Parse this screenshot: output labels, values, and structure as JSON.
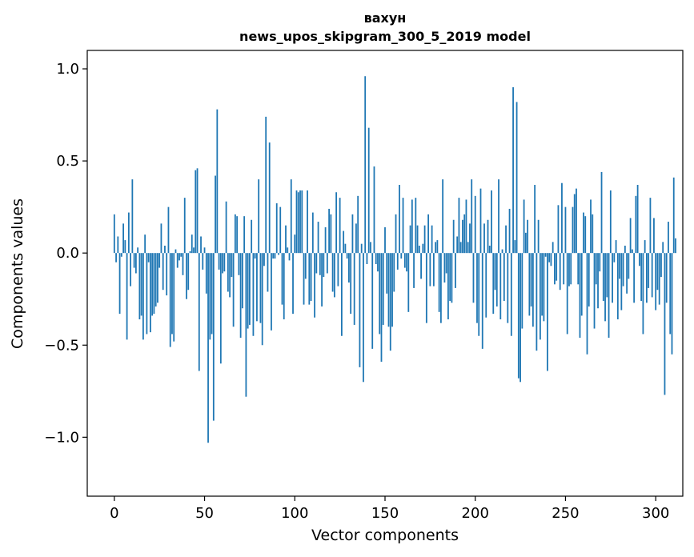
{
  "chart_data": {
    "type": "bar",
    "title": "вахун",
    "subtitle": "news_upos_skipgram_300_5_2019 model",
    "xlabel": "Vector components",
    "ylabel": "Components values",
    "xlim": [
      -15,
      315
    ],
    "ylim": [
      -1.32,
      1.1
    ],
    "color": "#1f77b4",
    "xticks": [
      0,
      50,
      100,
      150,
      200,
      250,
      300
    ],
    "yticks": [
      -1.0,
      -0.5,
      0.0,
      0.5,
      1.0
    ],
    "xtick_labels": [
      "0",
      "50",
      "100",
      "150",
      "200",
      "250",
      "300"
    ],
    "ytick_labels": [
      "−1.0",
      "−0.5",
      "0.0",
      "0.5",
      "1.0"
    ],
    "values": [
      0.21,
      -0.05,
      0.09,
      -0.33,
      -0.02,
      0.16,
      0.07,
      -0.47,
      0.22,
      -0.18,
      0.4,
      -0.08,
      -0.11,
      0.03,
      -0.36,
      -0.34,
      -0.47,
      0.1,
      -0.44,
      -0.05,
      -0.43,
      -0.34,
      -0.33,
      -0.29,
      -0.27,
      -0.08,
      0.16,
      -0.2,
      0.04,
      -0.23,
      0.25,
      -0.51,
      -0.44,
      -0.48,
      0.02,
      -0.08,
      -0.04,
      -0.02,
      -0.12,
      0.3,
      -0.25,
      -0.2,
      0.01,
      0.1,
      0.03,
      0.45,
      0.46,
      -0.64,
      0.09,
      -0.09,
      0.03,
      -0.22,
      -1.03,
      -0.47,
      -0.44,
      -0.91,
      0.42,
      0.78,
      -0.09,
      -0.6,
      -0.11,
      -0.1,
      0.28,
      -0.21,
      -0.24,
      -0.13,
      -0.4,
      0.21,
      0.2,
      -0.12,
      -0.46,
      -0.3,
      0.2,
      -0.78,
      -0.41,
      -0.39,
      0.18,
      -0.45,
      -0.03,
      -0.37,
      0.4,
      -0.38,
      -0.5,
      -0.07,
      0.74,
      -0.21,
      0.6,
      -0.42,
      -0.03,
      -0.03,
      0.27,
      -0.01,
      0.25,
      -0.28,
      -0.36,
      0.15,
      0.03,
      -0.04,
      0.4,
      -0.33,
      0.1,
      0.34,
      0.33,
      0.34,
      0.34,
      -0.28,
      -0.14,
      0.34,
      -0.28,
      -0.26,
      0.22,
      -0.35,
      -0.11,
      0.17,
      -0.12,
      -0.29,
      -0.13,
      0.14,
      -0.11,
      0.24,
      0.21,
      -0.21,
      -0.24,
      0.33,
      -0.18,
      0.3,
      -0.45,
      0.12,
      0.05,
      -0.03,
      -0.16,
      -0.33,
      0.21,
      -0.39,
      0.16,
      0.31,
      -0.62,
      0.05,
      -0.7,
      0.96,
      -0.06,
      0.68,
      0.06,
      -0.52,
      0.47,
      -0.06,
      -0.1,
      -0.44,
      -0.59,
      -0.39,
      0.14,
      -0.22,
      -0.4,
      -0.53,
      -0.4,
      -0.21,
      0.21,
      -0.09,
      0.37,
      -0.03,
      0.3,
      -0.08,
      -0.1,
      -0.32,
      0.15,
      0.29,
      -0.19,
      0.3,
      0.15,
      0.04,
      -0.14,
      0.05,
      0.15,
      -0.38,
      0.21,
      -0.18,
      0.15,
      -0.18,
      0.06,
      0.07,
      -0.32,
      -0.38,
      0.4,
      -0.16,
      -0.11,
      -0.36,
      -0.26,
      -0.27,
      0.18,
      -0.19,
      0.09,
      0.3,
      0.06,
      0.18,
      0.21,
      0.29,
      0.06,
      0.16,
      0.4,
      -0.27,
      0.31,
      -0.38,
      -0.45,
      0.35,
      -0.52,
      0.16,
      -0.35,
      0.18,
      0.04,
      0.34,
      -0.33,
      -0.2,
      -0.29,
      0.4,
      -0.36,
      0.02,
      -0.26,
      0.15,
      -0.38,
      0.24,
      -0.45,
      0.9,
      0.07,
      0.82,
      -0.68,
      -0.7,
      -0.41,
      0.29,
      0.11,
      0.18,
      -0.34,
      -0.29,
      -0.4,
      0.37,
      -0.53,
      0.18,
      -0.47,
      -0.34,
      -0.37,
      -0.02,
      -0.64,
      -0.05,
      -0.07,
      0.06,
      -0.17,
      -0.15,
      0.26,
      -0.2,
      0.38,
      -0.17,
      0.25,
      -0.44,
      -0.18,
      -0.17,
      0.25,
      0.32,
      0.35,
      -0.17,
      -0.46,
      -0.34,
      0.22,
      0.2,
      -0.55,
      -0.29,
      0.29,
      0.21,
      -0.41,
      -0.17,
      -0.3,
      -0.1,
      0.44,
      -0.26,
      -0.37,
      -0.24,
      -0.46,
      0.34,
      -0.27,
      -0.05,
      0.07,
      -0.36,
      -0.14,
      -0.31,
      -0.18,
      0.04,
      -0.22,
      -0.14,
      0.19,
      0.02,
      -0.27,
      0.31,
      0.37,
      -0.07,
      -0.26,
      -0.44,
      0.07,
      -0.27,
      -0.19,
      0.3,
      -0.24,
      0.19,
      -0.31,
      -0.2,
      -0.28,
      -0.13,
      0.06,
      -0.77,
      -0.27,
      0.17,
      -0.44,
      -0.55,
      0.41,
      0.08
    ]
  }
}
